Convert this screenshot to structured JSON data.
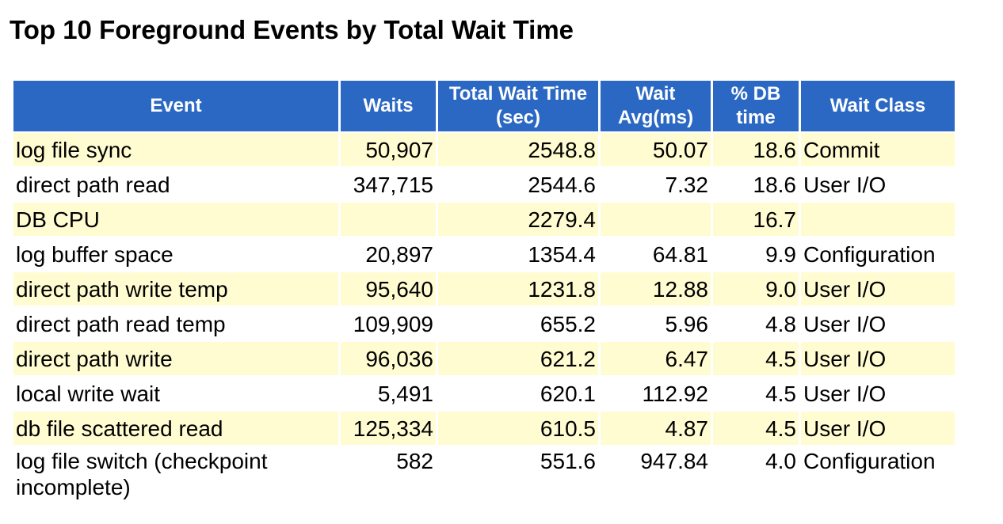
{
  "title": "Top 10 Foreground Events by Total Wait Time",
  "table": {
    "headers": {
      "event": "Event",
      "waits": "Waits",
      "total_wait_time": "Total Wait Time (sec)",
      "wait_avg": "Wait Avg(ms)",
      "pct_db_time": "% DB time",
      "wait_class": "Wait Class"
    },
    "rows": [
      {
        "event": "log file sync",
        "waits": "50,907",
        "total": "2548.8",
        "avg": "50.07",
        "pct": "18.6",
        "class": "Commit"
      },
      {
        "event": "direct path read",
        "waits": "347,715",
        "total": "2544.6",
        "avg": "7.32",
        "pct": "18.6",
        "class": "User I/O"
      },
      {
        "event": "DB CPU",
        "waits": "",
        "total": "2279.4",
        "avg": "",
        "pct": "16.7",
        "class": ""
      },
      {
        "event": "log buffer space",
        "waits": "20,897",
        "total": "1354.4",
        "avg": "64.81",
        "pct": "9.9",
        "class": "Configuration"
      },
      {
        "event": "direct path write temp",
        "waits": "95,640",
        "total": "1231.8",
        "avg": "12.88",
        "pct": "9.0",
        "class": "User I/O"
      },
      {
        "event": "direct path read temp",
        "waits": "109,909",
        "total": "655.2",
        "avg": "5.96",
        "pct": "4.8",
        "class": "User I/O"
      },
      {
        "event": "direct path write",
        "waits": "96,036",
        "total": "621.2",
        "avg": "6.47",
        "pct": "4.5",
        "class": "User I/O"
      },
      {
        "event": "local write wait",
        "waits": "5,491",
        "total": "620.1",
        "avg": "112.92",
        "pct": "4.5",
        "class": "User I/O"
      },
      {
        "event": "db file scattered read",
        "waits": "125,334",
        "total": "610.5",
        "avg": "4.87",
        "pct": "4.5",
        "class": "User I/O"
      },
      {
        "event": "log file switch (checkpoint incomplete)",
        "waits": "582",
        "total": "551.6",
        "avg": "947.84",
        "pct": "4.0",
        "class": "Configuration"
      }
    ]
  },
  "colors": {
    "header_bg": "#2b68c4",
    "header_text": "#ffffff",
    "row_alt_bg": "#fffcd2",
    "row_bg": "#ffffff"
  }
}
